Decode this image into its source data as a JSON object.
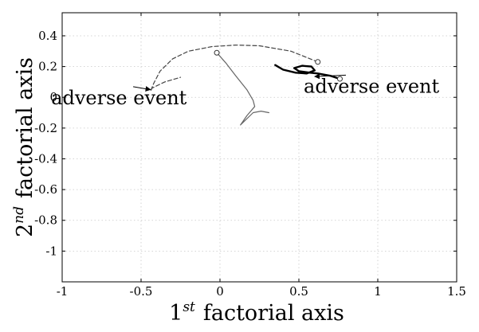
{
  "chart_data": {
    "type": "line",
    "title": "",
    "xlabel": {
      "base": "1",
      "sup": "st",
      "rest": "factorial axis"
    },
    "ylabel": {
      "base": "2",
      "sup": "nd",
      "rest": "factorial axis"
    },
    "xlim": [
      -1,
      1.5
    ],
    "ylim": [
      -1.2,
      0.55
    ],
    "xticks": [
      -1,
      -0.5,
      0,
      0.5,
      1,
      1.5
    ],
    "xtick_labels": [
      "-1",
      "-0.5",
      "0",
      "0.5",
      "1",
      "1.5"
    ],
    "yticks": [
      0.4,
      0.2,
      0,
      -0.2,
      -0.4,
      -0.6,
      -0.8,
      -1
    ],
    "ytick_labels": [
      "0.4",
      "0.2",
      "0",
      "-0.2",
      "-0.4",
      "-0.6",
      "-0.8",
      "-1"
    ],
    "grid": true,
    "legend": "none",
    "series": [
      {
        "style": "dashed",
        "color": "#444444",
        "x": [
          0.62,
          0.45,
          0.25,
          0.1,
          -0.05,
          -0.2,
          -0.3,
          -0.38,
          -0.42,
          -0.44,
          -0.43,
          -0.35,
          -0.25
        ],
        "y": [
          0.23,
          0.3,
          0.335,
          0.34,
          0.33,
          0.3,
          0.25,
          0.17,
          0.09,
          0.04,
          0.06,
          0.1,
          0.13
        ]
      },
      {
        "style": "solid-thin",
        "color": "#666666",
        "x": [
          -0.02,
          0.04,
          0.1,
          0.17,
          0.21,
          0.22,
          0.17,
          0.13,
          0.15,
          0.21,
          0.26,
          0.31
        ],
        "y": [
          0.29,
          0.22,
          0.14,
          0.05,
          -0.02,
          -0.06,
          -0.12,
          -0.18,
          -0.16,
          -0.1,
          -0.09,
          -0.1
        ]
      },
      {
        "style": "solid-thick",
        "color": "#000000",
        "x": [
          0.76,
          0.7,
          0.62,
          0.57,
          0.5,
          0.47,
          0.52,
          0.58,
          0.6,
          0.55,
          0.48,
          0.4,
          0.35
        ],
        "y": [
          0.12,
          0.14,
          0.155,
          0.16,
          0.17,
          0.19,
          0.205,
          0.2,
          0.175,
          0.155,
          0.16,
          0.18,
          0.21
        ]
      }
    ],
    "start_markers": [
      {
        "x": -0.02,
        "y": 0.29
      },
      {
        "x": 0.62,
        "y": 0.23
      },
      {
        "x": 0.76,
        "y": 0.12
      }
    ],
    "annotations": [
      {
        "text": "adverse event",
        "text_x": -0.64,
        "text_y": -0.045,
        "arrow_to_x": -0.44,
        "arrow_to_y": 0.05
      },
      {
        "text": "adverse event",
        "text_x": 0.96,
        "text_y": 0.03,
        "arrow_to_x": 0.6,
        "arrow_to_y": 0.135
      }
    ]
  }
}
